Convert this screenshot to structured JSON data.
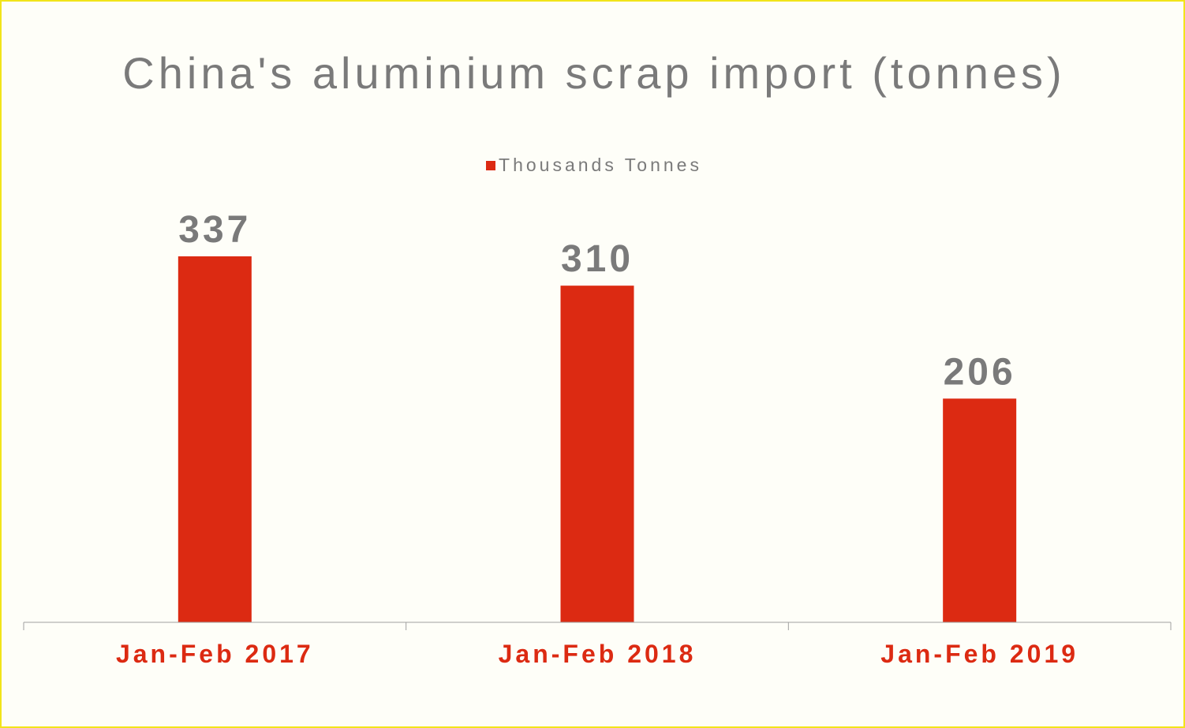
{
  "chart_data": {
    "type": "bar",
    "title": "China's aluminium scrap import (tonnes)",
    "categories": [
      "Jan-Feb 2017",
      "Jan-Feb 2018",
      "Jan-Feb 2019"
    ],
    "series": [
      {
        "name": "Thousands Tonnes",
        "values": [
          337,
          310,
          206
        ],
        "data_labels": [
          "337",
          "310",
          "206"
        ]
      }
    ],
    "ylim": [
      0,
      400
    ],
    "grid": false,
    "legend_position": "top-center",
    "colors": {
      "bar": "#dc2a12",
      "category_label": "#dc2a12",
      "text": "#7a7a7a",
      "axis": "#a0a0a0",
      "background": "#fefef8",
      "border": "#f2e41a"
    }
  }
}
